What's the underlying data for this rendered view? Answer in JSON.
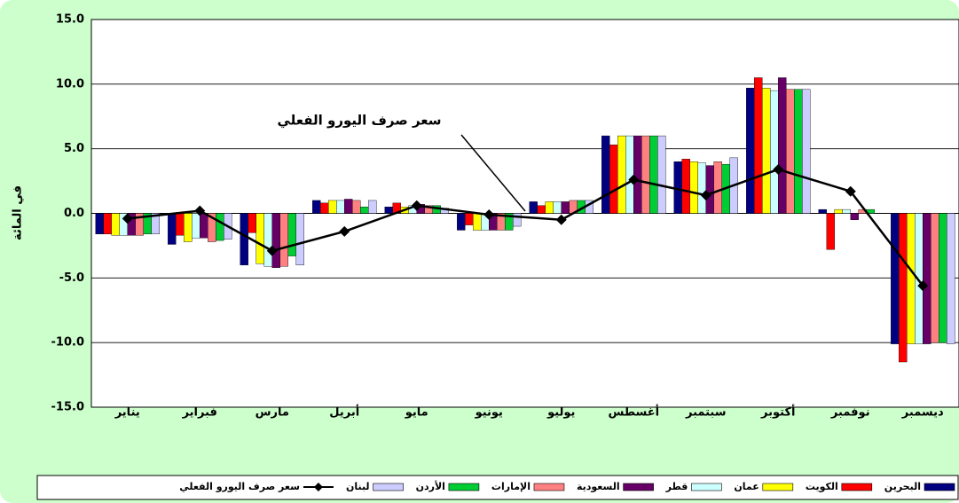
{
  "chart_data": {
    "type": "bar",
    "y_label": "في المائة",
    "annotation": "سعر صرف اليورو الفعلي",
    "categories": [
      "يناير",
      "فبراير",
      "مارس",
      "أبريل",
      "مايو",
      "يونيو",
      "يوليو",
      "أغسطس",
      "سبتمبر",
      "أكتوبر",
      "نوفمبر",
      "ديسمبر"
    ],
    "ylim": [
      -15,
      15
    ],
    "yticks": [
      {
        "value": -15,
        "label": "-15.0"
      },
      {
        "value": -10,
        "label": "-10.0"
      },
      {
        "value": -5,
        "label": "-5.0"
      },
      {
        "value": 0,
        "label": "0.0"
      },
      {
        "value": 5,
        "label": "5.0"
      },
      {
        "value": 10,
        "label": "10.0"
      },
      {
        "value": 15,
        "label": "15.0"
      }
    ],
    "grid": true,
    "series": [
      {
        "name": "البحرين",
        "color": "#000080",
        "values": [
          -1.6,
          -2.4,
          -4.0,
          1.0,
          0.5,
          -1.3,
          0.9,
          6.0,
          4.0,
          9.7,
          0.3,
          -10.1
        ]
      },
      {
        "name": "الكويت",
        "color": "#ff0000",
        "values": [
          -1.6,
          -1.7,
          -1.5,
          0.8,
          0.8,
          -0.9,
          0.6,
          5.3,
          4.2,
          10.5,
          -2.8,
          -11.5
        ]
      },
      {
        "name": "عمان",
        "color": "#ffff00",
        "values": [
          -1.7,
          -2.2,
          -3.9,
          1.0,
          0.5,
          -1.3,
          0.9,
          6.0,
          4.0,
          9.7,
          0.3,
          -10.1
        ]
      },
      {
        "name": "قطر",
        "color": "#ccffff",
        "values": [
          -1.7,
          -1.9,
          -4.1,
          1.0,
          0.6,
          -1.3,
          0.9,
          6.0,
          3.9,
          9.5,
          0.3,
          -10.1
        ]
      },
      {
        "name": "السعودية",
        "color": "#660066",
        "values": [
          -1.7,
          -1.9,
          -4.2,
          1.1,
          0.7,
          -1.3,
          0.9,
          6.0,
          3.7,
          10.5,
          -0.5,
          -10.1
        ]
      },
      {
        "name": "الإمارات",
        "color": "#ff8080",
        "values": [
          -1.7,
          -2.2,
          -4.1,
          1.0,
          0.6,
          -1.3,
          1.0,
          6.0,
          4.0,
          9.6,
          0.3,
          -10.0
        ]
      },
      {
        "name": "الأردن",
        "color": "#00cc33",
        "values": [
          -1.6,
          -2.1,
          -3.3,
          0.5,
          0.6,
          -1.3,
          1.0,
          6.0,
          3.8,
          9.6,
          0.3,
          -10.0
        ]
      },
      {
        "name": "لبنان",
        "color": "#ccccff",
        "values": [
          -1.6,
          -2.0,
          -4.0,
          1.0,
          0.4,
          -1.0,
          1.0,
          6.0,
          4.3,
          9.6,
          0.0,
          -10.1
        ]
      },
      {
        "name": "سعر صرف اليورو الفعلي",
        "color": "#000000",
        "type": "line",
        "values": [
          -0.4,
          0.2,
          -2.9,
          -1.4,
          0.6,
          -0.1,
          -0.5,
          2.6,
          1.4,
          3.4,
          1.7,
          -5.6
        ]
      }
    ]
  }
}
